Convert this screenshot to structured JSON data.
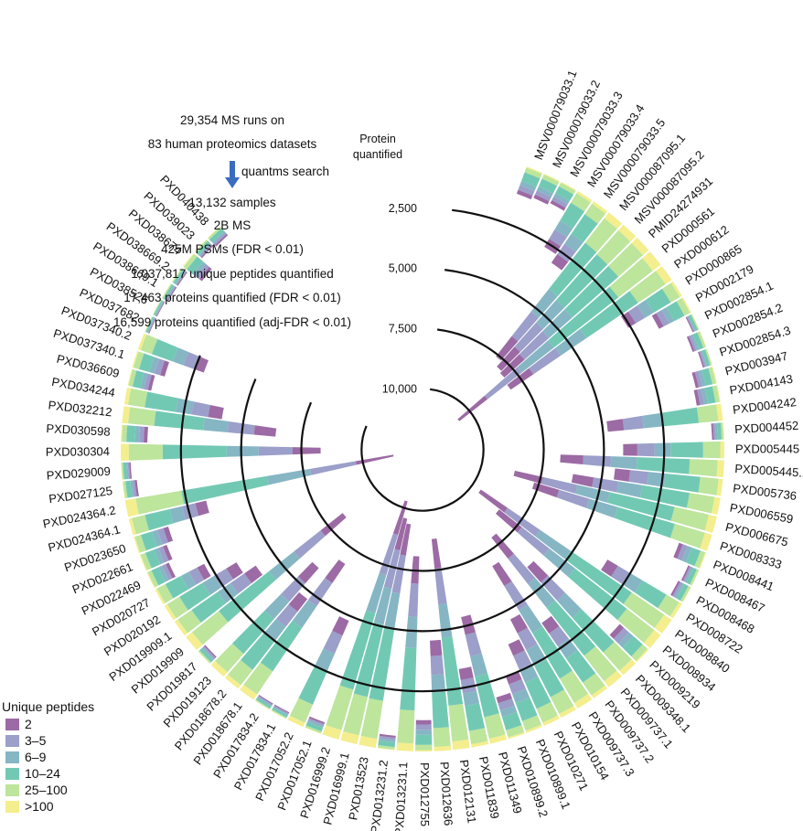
{
  "chart_data": {
    "type": "circular-stacked-bar",
    "legend_title": "Unique peptides",
    "legend": [
      {
        "label": "2",
        "color": "#9c6aa4"
      },
      {
        "label": "3–5",
        "color": "#9b9fc9"
      },
      {
        "label": "6–9",
        "color": "#86b6c4"
      },
      {
        "label": "10–24",
        "color": "#72c9b3"
      },
      {
        "label": "25–100",
        "color": "#bde59c"
      },
      {
        "label": ">100",
        "color": "#f4ee8e"
      }
    ],
    "radial_axis": {
      "title_line1": "Protein",
      "title_line2": "quantified",
      "ticks": [
        {
          "value": 2500,
          "label": "2,500"
        },
        {
          "value": 5000,
          "label": "5,000"
        },
        {
          "value": 7500,
          "label": "7,500"
        },
        {
          "value": 10000,
          "label": "10,000"
        }
      ],
      "max": 12000
    },
    "summary": {
      "lines_top": [
        "29,354 MS runs on",
        "83 human proteomics datasets"
      ],
      "arrow_label": "quantms search",
      "lines_bottom": [
        "13,132 samples",
        "2B MS",
        "425M PSMs (FDR < 0.01)",
        "1,037,817 unique peptides quantified",
        "17,463 proteins quantified (FDR < 0.01)",
        "16,599 proteins quantified (adj-FDR < 0.01)"
      ]
    },
    "datasets": [
      {
        "name": "MSV000079033.1",
        "proteins": 1200
      },
      {
        "name": "MSV000079033.2",
        "proteins": 1100
      },
      {
        "name": "MSV000079033.3",
        "proteins": 1000
      },
      {
        "name": "MSV000079033.4",
        "proteins": 2700
      },
      {
        "name": "MSV000079033.5",
        "proteins": 3100
      },
      {
        "name": "MSV000087095.1",
        "proteins": 7600
      },
      {
        "name": "MSV000087095.2",
        "proteins": 7900
      },
      {
        "name": "PMID24274931",
        "proteins": 8000
      },
      {
        "name": "PXD000561",
        "proteins": 10600
      },
      {
        "name": "PXD000612",
        "proteins": 8100
      },
      {
        "name": "PXD000865",
        "proteins": 2600
      },
      {
        "name": "PXD002179",
        "proteins": 1500
      },
      {
        "name": "PXD002854.1",
        "proteins": 300
      },
      {
        "name": "PXD002854.2",
        "proteins": 600
      },
      {
        "name": "PXD002854.3",
        "proteins": 400
      },
      {
        "name": "PXD003947",
        "proteins": 900
      },
      {
        "name": "PXD004143",
        "proteins": 1000
      },
      {
        "name": "PXD004242",
        "proteins": 4800
      },
      {
        "name": "PXD004452",
        "proteins": 500
      },
      {
        "name": "PXD005445",
        "proteins": 4200
      },
      {
        "name": "PXD005445.1",
        "proteins": 6800
      },
      {
        "name": "PXD005736",
        "proteins": 4500
      },
      {
        "name": "PXD006559",
        "proteins": 6200
      },
      {
        "name": "PXD006675",
        "proteins": 8600
      },
      {
        "name": "PXD008333",
        "proteins": 7700
      },
      {
        "name": "PXD008441",
        "proteins": 1200
      },
      {
        "name": "PXD008467",
        "proteins": 500
      },
      {
        "name": "PXD008468",
        "proteins": 600
      },
      {
        "name": "PXD008722",
        "proteins": 3600
      },
      {
        "name": "PXD008840",
        "proteins": 9600
      },
      {
        "name": "PXD008934",
        "proteins": 8500
      },
      {
        "name": "PXD009219",
        "proteins": 1600
      },
      {
        "name": "PXD009348.1",
        "proteins": 6000
      },
      {
        "name": "PXD009737.1",
        "proteins": 7900
      },
      {
        "name": "PXD009737.2",
        "proteins": 3800
      },
      {
        "name": "PXD009737.3",
        "proteins": 6900
      },
      {
        "name": "PXD010154",
        "proteins": 4600
      },
      {
        "name": "PXD010271",
        "proteins": 3700
      },
      {
        "name": "PXD010899.1",
        "proteins": 2500
      },
      {
        "name": "PXD010899.2",
        "proteins": 1800
      },
      {
        "name": "PXD011349",
        "proteins": 5400
      },
      {
        "name": "PXD011839",
        "proteins": 3300
      },
      {
        "name": "PXD012131",
        "proteins": 8800
      },
      {
        "name": "PXD012636",
        "proteins": 4600
      },
      {
        "name": "PXD012755",
        "proteins": 1300
      },
      {
        "name": "PXD013231.1",
        "proteins": 8100
      },
      {
        "name": "PXD013231.2",
        "proteins": 600
      },
      {
        "name": "PXD013523",
        "proteins": 9400
      },
      {
        "name": "PXD016999.1",
        "proteins": 9600
      },
      {
        "name": "PXD016999.2",
        "proteins": 10300
      },
      {
        "name": "PXD017052.1",
        "proteins": 500
      },
      {
        "name": "PXD017052.2",
        "proteins": 4800
      },
      {
        "name": "PXD017834.1",
        "proteins": 300
      },
      {
        "name": "PXD017834.2",
        "proteins": 300
      },
      {
        "name": "PXD018678.1",
        "proteins": 6800
      },
      {
        "name": "PXD018678.2",
        "proteins": 4700
      },
      {
        "name": "PXD019123",
        "proteins": 6000
      },
      {
        "name": "PXD019817",
        "proteins": 400
      },
      {
        "name": "PXD019909",
        "proteins": 8300
      },
      {
        "name": "PXD019909.1",
        "proteins": 4100
      },
      {
        "name": "PXD020192",
        "proteins": 3500
      },
      {
        "name": "PXD020727",
        "proteins": 2300
      },
      {
        "name": "PXD022469",
        "proteins": 1000
      },
      {
        "name": "PXD022661",
        "proteins": 1200
      },
      {
        "name": "PXD023650",
        "proteins": 1500
      },
      {
        "name": "PXD024364.1",
        "proteins": 3300
      },
      {
        "name": "PXD024364.2",
        "proteins": 11300
      },
      {
        "name": "PXD027125",
        "proteins": 600
      },
      {
        "name": "PXD029009",
        "proteins": 400
      },
      {
        "name": "PXD030304",
        "proteins": 8300
      },
      {
        "name": "PXD030598",
        "proteins": 1100
      },
      {
        "name": "PXD032212",
        "proteins": 6400
      },
      {
        "name": "PXD034244",
        "proteins": 4100
      },
      {
        "name": "PXD036609",
        "proteins": 1000
      },
      {
        "name": "PXD037340.1",
        "proteins": 1400
      },
      {
        "name": "PXD037340.2",
        "proteins": 2900
      },
      {
        "name": "PXD037682",
        "proteins": 200
      },
      {
        "name": "PXD038526",
        "proteins": 200
      },
      {
        "name": "PXD038669.1",
        "proteins": 300
      },
      {
        "name": "PXD038669.2",
        "proteins": 300
      },
      {
        "name": "PXD038674",
        "proteins": 1000
      },
      {
        "name": "PXD039023",
        "proteins": 400
      },
      {
        "name": "PXD040438",
        "proteins": 500
      }
    ]
  }
}
